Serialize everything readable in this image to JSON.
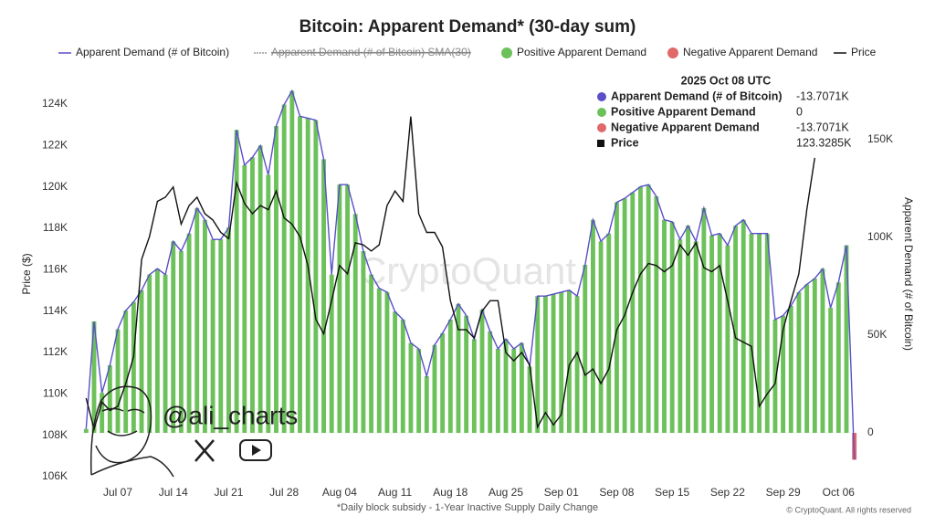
{
  "chart_data": {
    "type": "bar_line",
    "title": "Bitcoin: Apparent Demand* (30-day sum)",
    "footnote": "*Daily block subsidy - 1-Year Inactive Supply Daily Change",
    "copyright": "© CryptoQuant. All rights reserved",
    "watermark": "CryptoQuant",
    "handle": "@ali_charts",
    "ylabel": "Price ($)",
    "y2label": "Apparent Demand (# of Bitcoin)",
    "categories": [
      null,
      null,
      null,
      null,
      "Jul 07",
      null,
      null,
      null,
      null,
      null,
      null,
      "Jul 14",
      null,
      null,
      null,
      null,
      null,
      null,
      "Jul 21",
      null,
      null,
      null,
      null,
      null,
      null,
      "Jul 28",
      null,
      null,
      null,
      null,
      null,
      null,
      "Aug 04",
      null,
      null,
      null,
      null,
      null,
      null,
      "Aug 11",
      null,
      null,
      null,
      null,
      null,
      null,
      "Aug 18",
      null,
      null,
      null,
      null,
      null,
      null,
      "Aug 25",
      null,
      null,
      null,
      null,
      null,
      null,
      "Sep 01",
      null,
      null,
      null,
      null,
      null,
      null,
      "Sep 08",
      null,
      null,
      null,
      null,
      null,
      null,
      "Sep 15",
      null,
      null,
      null,
      null,
      null,
      null,
      "Sep 22",
      null,
      null,
      null,
      null,
      null,
      null,
      "Sep 29",
      null,
      null,
      null,
      null,
      null,
      null,
      "Oct 06",
      null,
      null
    ],
    "series": [
      {
        "name": "Apparent Demand (# of Bitcoin)",
        "color": "#5a4fc8",
        "axis": "y2",
        "style": "line",
        "values": [
          2000,
          57000,
          20500,
          34600,
          53000,
          62600,
          67000,
          73000,
          81000,
          84000,
          81000,
          98000,
          93000,
          102000,
          115000,
          109000,
          99000,
          99000,
          105000,
          155000,
          137000,
          141000,
          147000,
          132000,
          157000,
          168000,
          175000,
          162000,
          161000,
          160000,
          140000,
          81000,
          127000,
          127000,
          112000,
          93000,
          81000,
          74000,
          72000,
          62000,
          58000,
          46000,
          43000,
          29000,
          45000,
          51000,
          58000,
          66000,
          60000,
          48000,
          63000,
          52000,
          43000,
          48000,
          43000,
          46000,
          34000,
          70000,
          70000,
          71000,
          72000,
          73000,
          70000,
          86000,
          109000,
          98000,
          102000,
          118000,
          120000,
          123000,
          126000,
          127000,
          121000,
          109000,
          108000,
          99000,
          106000,
          98000,
          115000,
          101000,
          102000,
          96000,
          106000,
          109000,
          102000,
          102000,
          102000,
          58000,
          60000,
          65000,
          72000,
          76000,
          79000,
          84000,
          64000,
          77000,
          96000,
          -13707.1
        ]
      },
      {
        "name": "Apparent Demand (# of Bitcoin) SMA(30)",
        "color": "#9a9a9a",
        "hidden": true
      },
      {
        "name": "Positive Apparent Demand",
        "color": "#6cc15a"
      },
      {
        "name": "Negative Apparent Demand",
        "color": "#e06868"
      },
      {
        "name": "Price",
        "color": "#111111",
        "axis": "y",
        "style": "line",
        "values": [
          109800,
          108300,
          109600,
          109200,
          109400,
          110500,
          111800,
          116500,
          117600,
          119300,
          119500,
          120000,
          118200,
          119100,
          119500,
          118700,
          118400,
          117800,
          117500,
          120200,
          119200,
          118700,
          119100,
          118900,
          119800,
          118500,
          118200,
          117600,
          116200,
          113600,
          112900,
          114500,
          116200,
          115800,
          117300,
          117200,
          116900,
          117200,
          119100,
          119800,
          119300,
          123400,
          118700,
          117800,
          117800,
          117100,
          114500,
          113100,
          113100,
          112700,
          114000,
          114500,
          114500,
          112000,
          111600,
          112000,
          111400,
          108400,
          109100,
          108500,
          109000,
          111400,
          112000,
          110900,
          111200,
          110500,
          111200,
          113100,
          113800,
          114900,
          115800,
          116300,
          116200,
          115900,
          116200,
          117200,
          116700,
          117300,
          116100,
          115900,
          116200,
          114500,
          112700,
          112500,
          112300,
          109400,
          110000,
          110500,
          113100,
          114500,
          115800,
          118900,
          121400,
          null,
          null,
          null,
          null,
          null
        ]
      }
    ],
    "ylim": [
      106000,
      125500
    ],
    "yticks": [
      {
        "value": 106000,
        "label": "106K"
      },
      {
        "value": 108000,
        "label": "108K"
      },
      {
        "value": 110000,
        "label": "110K"
      },
      {
        "value": 112000,
        "label": "112K"
      },
      {
        "value": 114000,
        "label": "114K"
      },
      {
        "value": 116000,
        "label": "116K"
      },
      {
        "value": 118000,
        "label": "118K"
      },
      {
        "value": 120000,
        "label": "120K"
      },
      {
        "value": 122000,
        "label": "122K"
      },
      {
        "value": 124000,
        "label": "124K"
      }
    ],
    "y2lim": [
      -22400,
      184100
    ],
    "y2ticks": [
      0,
      {
        "value": 50000,
        "label": "50K"
      },
      {
        "value": 100000,
        "label": "100K"
      },
      {
        "value": 150000,
        "label": "150K"
      }
    ],
    "grid": false,
    "tooltip": {
      "date": "2025 Oct 08 UTC",
      "rows": [
        {
          "label": "Apparent Demand (# of Bitcoin)",
          "value": "-13.7071K"
        },
        {
          "label": "Positive Apparent Demand",
          "value": "0"
        },
        {
          "label": "Negative Apparent Demand",
          "value": "-13.7071K"
        },
        {
          "label": "Price",
          "value": "123.3285K"
        }
      ]
    }
  }
}
